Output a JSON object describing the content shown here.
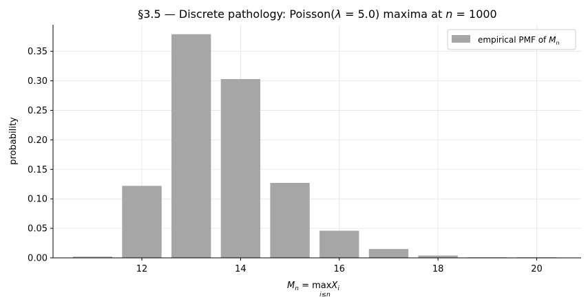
{
  "chart_data": {
    "type": "bar",
    "title": "§3.5 — Discrete pathology: Poisson(λ = 5.0) maxima at n = 1000",
    "title_parts": {
      "prefix": "§3.5 — Discrete pathology: Poisson(",
      "lambda_symbol": "λ",
      "lambda_eq": " = 5.0) maxima at ",
      "n_symbol": "n",
      "n_eq": " = 1000"
    },
    "xlabel": "M_n = max_{i≤n} X_i",
    "xlabel_parts": {
      "M": "M",
      "n_sub": "n",
      "eq": " = max",
      "under": "i≤n",
      "X": "X",
      "i_sub": "i"
    },
    "ylabel": "probability",
    "x": [
      11,
      12,
      13,
      14,
      15,
      16,
      17,
      18,
      19,
      20
    ],
    "values": [
      0.002,
      0.122,
      0.379,
      0.303,
      0.127,
      0.046,
      0.015,
      0.004,
      0.001,
      0.001
    ],
    "xlim": [
      10.2,
      20.9
    ],
    "ylim": [
      0,
      0.395
    ],
    "xticks": [
      12,
      14,
      16,
      18,
      20
    ],
    "yticks": [
      0.0,
      0.05,
      0.1,
      0.15,
      0.2,
      0.25,
      0.3,
      0.35
    ],
    "ytick_labels": [
      "0.00",
      "0.05",
      "0.10",
      "0.15",
      "0.20",
      "0.25",
      "0.30",
      "0.35"
    ],
    "grid": true,
    "bar_color": "#a6a6a6",
    "legend": {
      "position": "upper-right",
      "label_prefix": "empirical PMF of ",
      "label_symbol": "M",
      "label_sub": "n"
    }
  }
}
